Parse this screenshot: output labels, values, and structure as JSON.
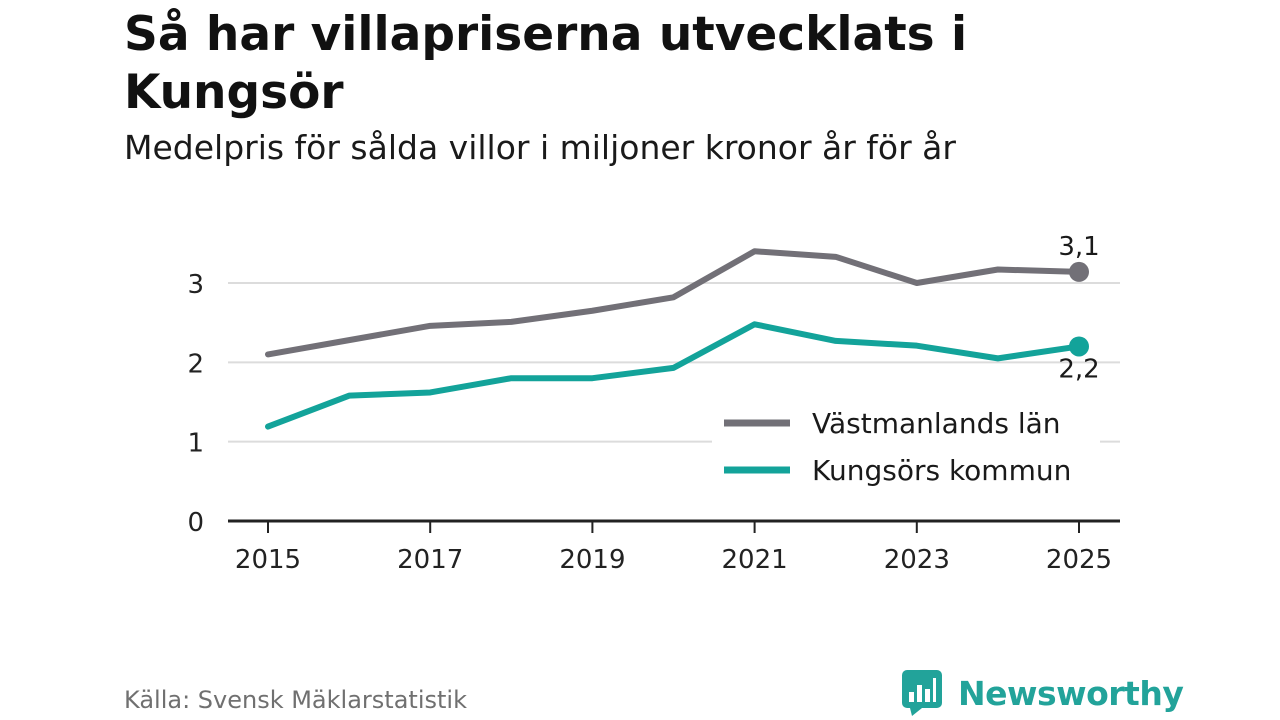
{
  "chart_data": {
    "type": "line",
    "title": "Så har villapriserna utvecklats i Kungsör",
    "subtitle": "Medelpris för sålda villor i miljoner kronor år för år",
    "x": [
      2015,
      2016,
      2017,
      2018,
      2019,
      2020,
      2021,
      2022,
      2023,
      2024,
      2025
    ],
    "xticks": [
      "2015",
      "2017",
      "2019",
      "2021",
      "2023",
      "2025"
    ],
    "yticks": [
      "0",
      "1",
      "2",
      "3"
    ],
    "ylim": [
      0,
      3.5
    ],
    "xlabel": "",
    "ylabel": "",
    "grid": true,
    "legend_position": "bottom-right",
    "series": [
      {
        "name": "Västmanlands län",
        "color": "#727077",
        "values": [
          2.1,
          2.28,
          2.46,
          2.51,
          2.65,
          2.82,
          3.4,
          3.33,
          3.0,
          3.17,
          3.14
        ],
        "end_label": "3,1"
      },
      {
        "name": "Kungsörs kommun",
        "color": "#13a39a",
        "values": [
          1.19,
          1.58,
          1.62,
          1.8,
          1.8,
          1.93,
          2.48,
          2.27,
          2.21,
          2.05,
          2.2
        ],
        "end_label": "2,2"
      }
    ]
  },
  "footer": {
    "source": "Källa: Svensk Mäklarstatistik",
    "brand": "Newsworthy"
  },
  "colors": {
    "brand": "#22a39a",
    "grid": "#dcdcdc",
    "axis": "#222222"
  }
}
